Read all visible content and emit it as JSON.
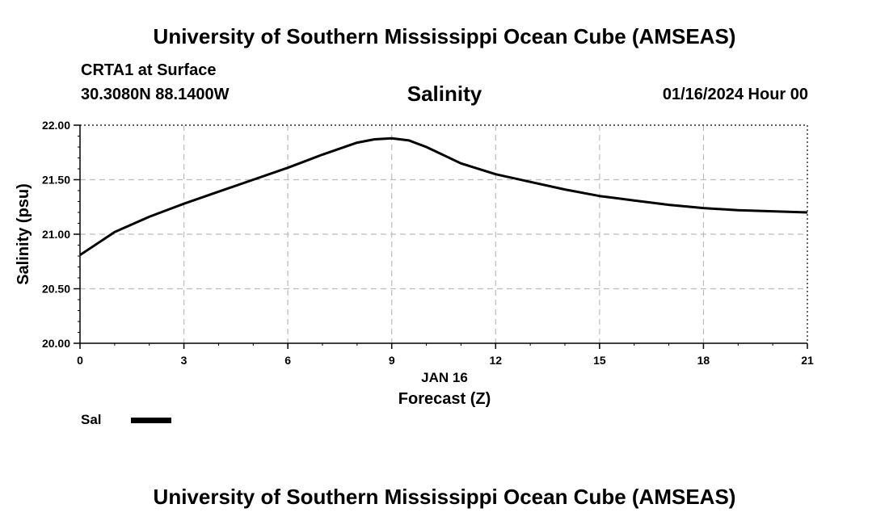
{
  "header": {
    "top_title": "University of Southern Mississippi Ocean Cube (AMSEAS)",
    "station": "CRTA1 at Surface",
    "coords": "30.3080N  88.1400W",
    "variable": "Salinity",
    "datetime": "01/16/2024 Hour 00"
  },
  "footer": {
    "bottom_title": "University of Southern Mississippi Ocean Cube (AMSEAS)"
  },
  "legend": {
    "label": "Sal",
    "color": "#000000"
  },
  "chart_data": {
    "type": "line",
    "title": "Salinity",
    "xlabel": "Forecast (Z)",
    "xsublabel": "JAN 16",
    "ylabel": "Salinity (psu)",
    "xlim": [
      0,
      21
    ],
    "ylim": [
      20.0,
      22.0
    ],
    "xticks": [
      0,
      3,
      6,
      9,
      12,
      15,
      18,
      21
    ],
    "xtick_labels": [
      "0",
      "3",
      "6",
      "9",
      "12",
      "15",
      "18",
      "21"
    ],
    "yticks": [
      20.0,
      20.5,
      21.0,
      21.5,
      22.0
    ],
    "ytick_labels": [
      "20.00",
      "20.50",
      "21.00",
      "21.50",
      "22.00"
    ],
    "grid": true,
    "series": [
      {
        "name": "Sal",
        "x": [
          0,
          1,
          2,
          3,
          4,
          5,
          6,
          7,
          8,
          8.5,
          9,
          9.5,
          10,
          11,
          12,
          13,
          14,
          15,
          16,
          17,
          18,
          19,
          20,
          21
        ],
        "y": [
          20.81,
          21.02,
          21.16,
          21.28,
          21.39,
          21.5,
          21.61,
          21.73,
          21.84,
          21.87,
          21.88,
          21.86,
          21.8,
          21.65,
          21.55,
          21.48,
          21.41,
          21.35,
          21.31,
          21.27,
          21.24,
          21.22,
          21.21,
          21.2
        ]
      }
    ]
  }
}
